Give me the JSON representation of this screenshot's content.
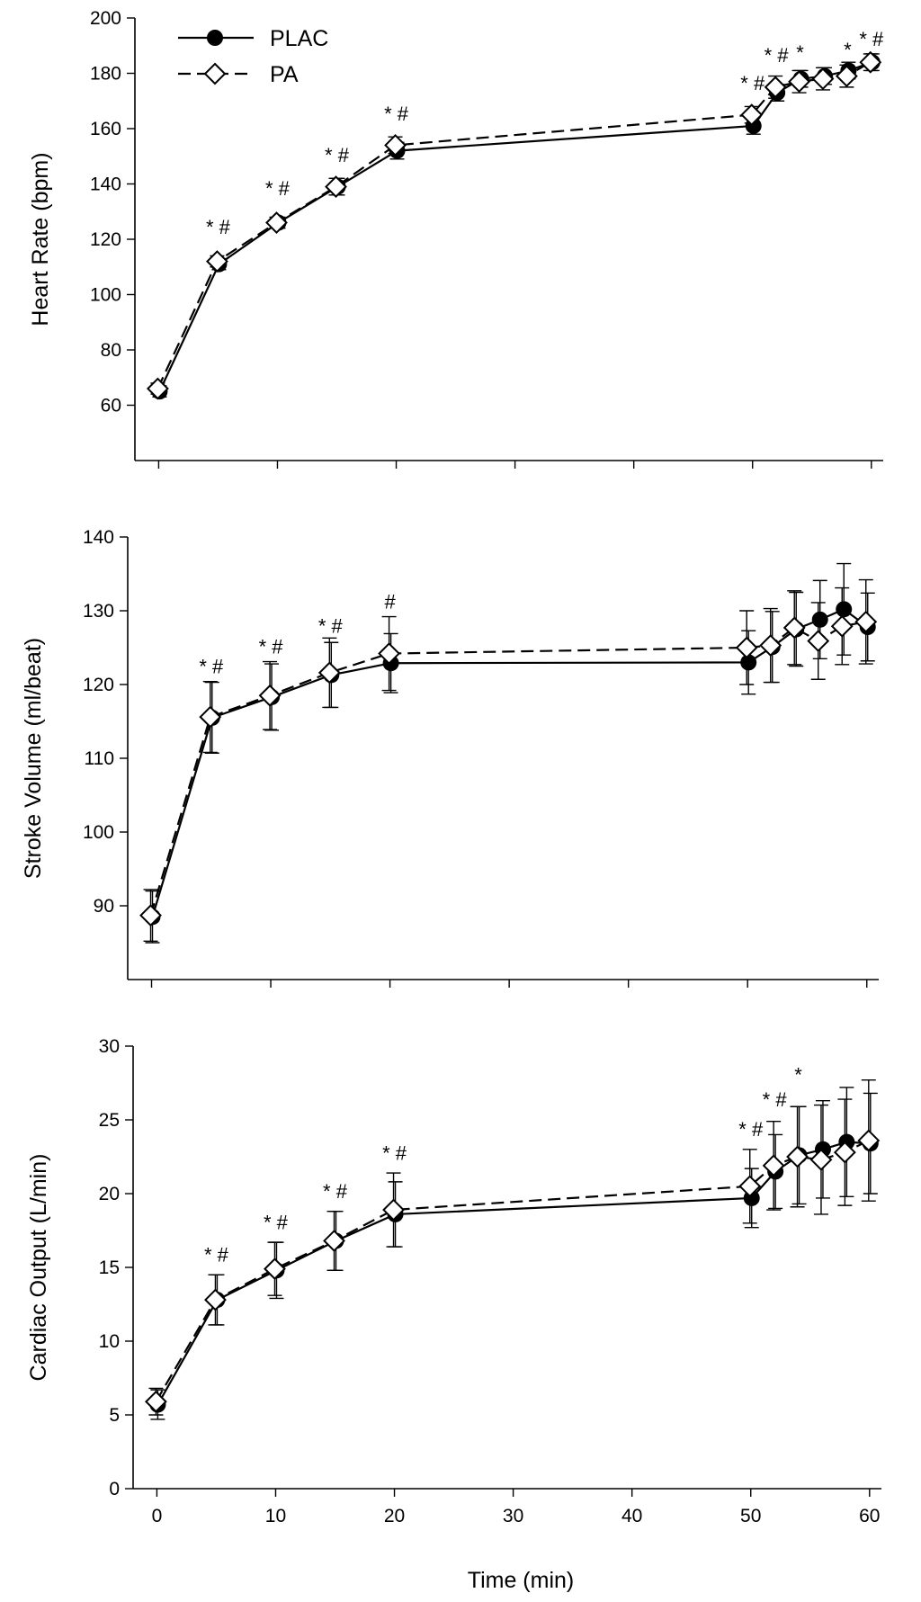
{
  "legend": [
    {
      "series": "PLAC",
      "label": "PLAC"
    },
    {
      "series": "PA",
      "label": "PA"
    }
  ],
  "x_axis_title": "Time (min)",
  "chart_data": [
    {
      "type": "line",
      "id": "hr",
      "ylabel": "Heart Rate (bpm)",
      "xlim": [
        -2,
        61
      ],
      "ylim": [
        40,
        200
      ],
      "yticks": [
        60,
        80,
        100,
        120,
        140,
        160,
        180,
        200
      ],
      "yticklabels": [
        "60",
        "80",
        "100",
        "120",
        "140",
        "160",
        "180",
        "200"
      ],
      "xticks": [
        0,
        10,
        20,
        30,
        40,
        50,
        60
      ],
      "show_xticklabels": false,
      "series": [
        {
          "name": "PLAC",
          "x": [
            0,
            5,
            10,
            15,
            20,
            50,
            52,
            54,
            56,
            58,
            60
          ],
          "values": [
            65,
            111,
            126,
            139,
            152,
            161,
            173,
            178,
            179,
            181,
            184
          ],
          "err": [
            2,
            2,
            2,
            3,
            3,
            3,
            3,
            3,
            3,
            3,
            3
          ]
        },
        {
          "name": "PA",
          "x": [
            0,
            5,
            10,
            15,
            20,
            50,
            52,
            54,
            56,
            58,
            60
          ],
          "values": [
            66,
            112,
            126,
            139,
            154,
            165,
            175,
            177,
            178,
            179,
            184
          ],
          "err": [
            2,
            2,
            2,
            3,
            3,
            3,
            4,
            4,
            4,
            4,
            3
          ]
        }
      ],
      "annotations": [
        {
          "x": 5,
          "y": 122,
          "text": "* #"
        },
        {
          "x": 10,
          "y": 136,
          "text": "* #"
        },
        {
          "x": 15,
          "y": 148,
          "text": "* #"
        },
        {
          "x": 20,
          "y": 163,
          "text": "* #"
        },
        {
          "x": 50,
          "y": 174,
          "text": "* #"
        },
        {
          "x": 52,
          "y": 184,
          "text": "* #"
        },
        {
          "x": 54,
          "y": 185,
          "text": "*"
        },
        {
          "x": 58,
          "y": 186,
          "text": "*"
        },
        {
          "x": 60,
          "y": 190,
          "text": "* #"
        }
      ]
    },
    {
      "type": "line",
      "id": "sv",
      "ylabel": "Stroke Volume (ml/beat)",
      "xlim": [
        -2,
        61
      ],
      "ylim": [
        80,
        140
      ],
      "yticks": [
        90,
        100,
        110,
        120,
        130,
        140
      ],
      "yticklabels": [
        "90",
        "100",
        "110",
        "120",
        "130",
        "140"
      ],
      "xticks": [
        0,
        10,
        20,
        30,
        40,
        50,
        60
      ],
      "show_xticklabels": false,
      "series": [
        {
          "name": "PLAC",
          "x": [
            0,
            5,
            10,
            15,
            20,
            50,
            52,
            54,
            56,
            58,
            60
          ],
          "values": [
            88.5,
            115.5,
            118.3,
            121.3,
            122.9,
            123.0,
            125.1,
            127.5,
            128.8,
            130.2,
            127.8
          ],
          "err": [
            3.5,
            4.8,
            4.5,
            4.4,
            4.0,
            4.3,
            4.8,
            5.0,
            5.3,
            6.2,
            4.6
          ]
        },
        {
          "name": "PA",
          "x": [
            0,
            5,
            10,
            15,
            20,
            50,
            52,
            54,
            56,
            58,
            60
          ],
          "values": [
            88.7,
            115.6,
            118.5,
            121.6,
            124.2,
            125.0,
            125.3,
            127.7,
            125.9,
            127.9,
            128.5
          ],
          "err": [
            3.5,
            4.8,
            4.6,
            4.7,
            5.0,
            5.0,
            5.0,
            5.0,
            5.2,
            5.2,
            5.7
          ]
        }
      ],
      "annotations": [
        {
          "x": 5,
          "y": 121.5,
          "text": "* #"
        },
        {
          "x": 10,
          "y": 124.2,
          "text": "* #"
        },
        {
          "x": 15,
          "y": 127.0,
          "text": "* #"
        },
        {
          "x": 20,
          "y": 130.3,
          "text": "#"
        }
      ]
    },
    {
      "type": "line",
      "id": "co",
      "ylabel": "Cardiac Output (L/min)",
      "xlabel": "Time (min)",
      "xlim": [
        -2,
        61
      ],
      "ylim": [
        0,
        30
      ],
      "yticks": [
        0,
        5,
        10,
        15,
        20,
        25,
        30
      ],
      "yticklabels": [
        "0",
        "5",
        "10",
        "15",
        "20",
        "25",
        "30"
      ],
      "xticks": [
        0,
        10,
        20,
        30,
        40,
        50,
        60
      ],
      "xticklabels": [
        "0",
        "10",
        "20",
        "30",
        "40",
        "50",
        "60"
      ],
      "show_xticklabels": true,
      "series": [
        {
          "name": "PLAC",
          "x": [
            0,
            5,
            10,
            15,
            20,
            50,
            52,
            54,
            56,
            58,
            60
          ],
          "values": [
            5.7,
            12.8,
            14.8,
            16.8,
            18.6,
            19.7,
            21.5,
            22.6,
            23.0,
            23.5,
            23.4
          ],
          "err": [
            1.0,
            1.7,
            1.9,
            2.0,
            2.2,
            2.0,
            2.5,
            3.3,
            3.3,
            3.7,
            3.4
          ]
        },
        {
          "name": "PA",
          "x": [
            0,
            5,
            10,
            15,
            20,
            50,
            52,
            54,
            56,
            58,
            60
          ],
          "values": [
            5.9,
            12.8,
            14.9,
            16.8,
            18.9,
            20.5,
            21.9,
            22.5,
            22.3,
            22.8,
            23.6
          ],
          "err": [
            0.9,
            1.7,
            1.8,
            2.0,
            2.5,
            2.5,
            3.0,
            3.4,
            3.7,
            3.6,
            4.1
          ]
        }
      ],
      "annotations": [
        {
          "x": 5,
          "y": 15.4,
          "text": "* #"
        },
        {
          "x": 10,
          "y": 17.6,
          "text": "* #"
        },
        {
          "x": 15,
          "y": 19.7,
          "text": "* #"
        },
        {
          "x": 20,
          "y": 22.3,
          "text": "* #"
        },
        {
          "x": 50,
          "y": 23.9,
          "text": "* #"
        },
        {
          "x": 52,
          "y": 25.9,
          "text": "* #"
        },
        {
          "x": 54,
          "y": 27.6,
          "text": "*"
        }
      ]
    }
  ]
}
